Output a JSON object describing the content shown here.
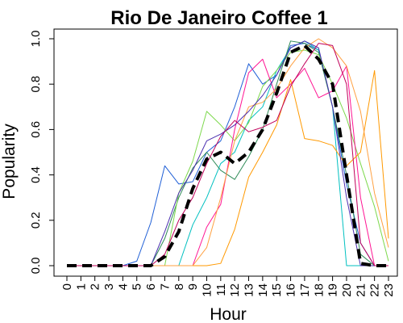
{
  "chart_data": {
    "type": "line",
    "title": "Rio De Janeiro Coffee 1",
    "xlabel": "Hour",
    "ylabel": "Popularity",
    "x": [
      0,
      1,
      2,
      3,
      4,
      5,
      6,
      7,
      8,
      9,
      10,
      11,
      12,
      13,
      14,
      15,
      16,
      17,
      18,
      19,
      20,
      21,
      22,
      23
    ],
    "x_tick_labels": [
      "0",
      "1",
      "2",
      "3",
      "4",
      "5",
      "6",
      "7",
      "8",
      "9",
      "10",
      "11",
      "12",
      "13",
      "14",
      "15",
      "16",
      "17",
      "18",
      "19",
      "20",
      "21",
      "22",
      "23"
    ],
    "y_tick_labels": [
      "0.0",
      "0.2",
      "0.4",
      "0.6",
      "0.8",
      "1.0"
    ],
    "y_ticks": [
      0,
      0.2,
      0.4,
      0.6,
      0.8,
      1.0
    ],
    "xlim": [
      0,
      23
    ],
    "ylim": [
      0,
      1
    ],
    "grid": false,
    "legend": false,
    "series": [
      {
        "color": "#1f5fd6",
        "width": 1,
        "dashed": false,
        "values": [
          0,
          0,
          0,
          0,
          0,
          0.02,
          0.19,
          0.44,
          0.36,
          0.37,
          0.5,
          0.55,
          0.7,
          0.89,
          0.8,
          0.84,
          0.97,
          0.98,
          0.95,
          0.7,
          0.36,
          0.1,
          0,
          0
        ]
      },
      {
        "color": "#00c0c0",
        "width": 1,
        "dashed": false,
        "values": [
          0,
          0,
          0,
          0,
          0,
          0,
          0,
          0,
          0,
          0.18,
          0.3,
          0.45,
          0.5,
          0.64,
          0.7,
          0.86,
          0.96,
          0.99,
          0.95,
          0.7,
          0,
          0,
          0,
          0
        ]
      },
      {
        "color": "#2e8b57",
        "width": 1,
        "dashed": false,
        "values": [
          0,
          0,
          0,
          0,
          0,
          0,
          0,
          0.12,
          0.3,
          0.43,
          0.5,
          0.42,
          0.38,
          0.48,
          0.6,
          0.8,
          0.99,
          0.98,
          0.94,
          0.7,
          0.4,
          0.05,
          0,
          0
        ]
      },
      {
        "color": "#7cd84b",
        "width": 1,
        "dashed": false,
        "values": [
          0,
          0,
          0,
          0,
          0,
          0,
          0,
          0,
          0.32,
          0.46,
          0.68,
          0.62,
          0.55,
          0.63,
          0.79,
          0.86,
          0.94,
          0.95,
          0.93,
          0.8,
          0.65,
          0.45,
          0.26,
          0.02
        ]
      },
      {
        "color": "#ff1493",
        "width": 1,
        "dashed": false,
        "values": [
          0,
          0,
          0,
          0,
          0,
          0,
          0,
          0,
          0,
          0,
          0.17,
          0.27,
          0.6,
          0.85,
          0.91,
          0.74,
          0.8,
          0.87,
          0.74,
          0.77,
          0.88,
          0.3,
          0,
          0
        ]
      },
      {
        "color": "#ff9900",
        "width": 1,
        "dashed": false,
        "values": [
          0,
          0,
          0,
          0,
          0,
          0,
          0,
          0,
          0,
          0,
          0,
          0.01,
          0.16,
          0.39,
          0.5,
          0.62,
          0.82,
          0.56,
          0.55,
          0.53,
          0.44,
          0.5,
          0.86,
          0.12
        ]
      },
      {
        "color": "#ffa040",
        "width": 1,
        "dashed": false,
        "values": [
          0,
          0,
          0,
          0,
          0,
          0,
          0,
          0,
          0,
          0,
          0.08,
          0.3,
          0.55,
          0.7,
          0.72,
          0.78,
          0.88,
          0.96,
          1.0,
          0.96,
          0.88,
          0.68,
          0.32,
          0.08
        ]
      },
      {
        "color": "#4b2fb0",
        "width": 1,
        "dashed": false,
        "values": [
          0,
          0,
          0,
          0,
          0,
          0,
          0,
          0.15,
          0.32,
          0.42,
          0.55,
          0.58,
          0.62,
          0.68,
          0.75,
          0.84,
          0.96,
          0.99,
          0.96,
          0.7,
          0.3,
          0,
          0,
          0
        ]
      },
      {
        "color": "#c0005a",
        "width": 1,
        "dashed": false,
        "values": [
          0,
          0,
          0,
          0,
          0,
          0,
          0,
          0.05,
          0.2,
          0.3,
          0.45,
          0.57,
          0.64,
          0.59,
          0.61,
          0.64,
          0.79,
          0.89,
          0.98,
          0.97,
          0.8,
          0.1,
          0,
          0
        ]
      },
      {
        "color": "#000000",
        "width": 4,
        "dashed": true,
        "values": [
          0,
          0,
          0,
          0,
          0,
          0,
          0,
          0.04,
          0.15,
          0.34,
          0.47,
          0.5,
          0.45,
          0.5,
          0.6,
          0.76,
          0.94,
          0.97,
          0.91,
          0.8,
          0.4,
          0.01,
          0,
          0
        ]
      }
    ]
  }
}
